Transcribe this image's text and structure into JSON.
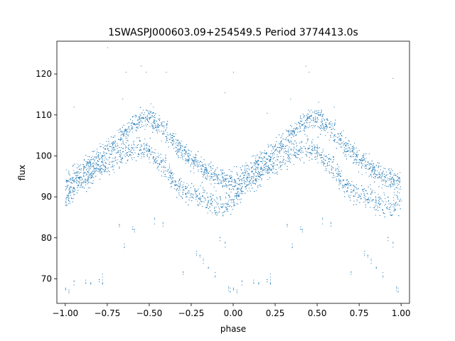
{
  "chart_data": {
    "type": "scatter",
    "title": "1SWASPJ000603.09+254549.5 Period 3774413.0s",
    "xlabel": "phase",
    "ylabel": "flux",
    "xlim": [
      -1.05,
      1.05
    ],
    "ylim": [
      64,
      128
    ],
    "xticks": [
      -1.0,
      -0.75,
      -0.5,
      -0.25,
      0.0,
      0.25,
      0.5,
      0.75,
      1.0
    ],
    "xtick_labels": [
      "−1.00",
      "−0.75",
      "−0.50",
      "−0.25",
      "0.00",
      "0.25",
      "0.50",
      "0.75",
      "1.00"
    ],
    "yticks": [
      70,
      80,
      90,
      100,
      110,
      120
    ],
    "ytick_labels": [
      "70",
      "80",
      "90",
      "100",
      "110",
      "120"
    ],
    "grid": false,
    "marker_color": "#1f77b4",
    "series": [
      {
        "x": [
          0.0,
          0.05,
          0.1,
          0.15,
          0.2,
          0.25,
          0.3,
          0.35,
          0.4,
          0.45,
          0.5,
          0.55,
          0.6,
          0.65,
          0.7,
          0.75,
          0.8,
          0.85,
          0.9,
          0.95,
          1.0
        ],
        "upper_branch": [
          93.5,
          95.0,
          96.5,
          98.0,
          100.0,
          101.5,
          103.5,
          105.5,
          107.5,
          109.0,
          109.5,
          108.0,
          106.0,
          103.5,
          101.0,
          99.0,
          97.5,
          96.0,
          95.0,
          94.5,
          94.0
        ],
        "lower_branch": [
          89.0,
          92.0,
          94.0,
          95.0,
          96.5,
          97.5,
          99.0,
          100.5,
          101.5,
          102.0,
          101.0,
          99.0,
          96.5,
          94.0,
          92.0,
          91.0,
          90.0,
          89.0,
          88.0,
          88.0,
          89.0
        ]
      }
    ],
    "dip_points": [
      {
        "x": 0.0,
        "y": 67.5
      },
      {
        "x": 0.02,
        "y": 67.0
      },
      {
        "x": 0.05,
        "y": 69.0
      },
      {
        "x": 0.12,
        "y": 69.5
      },
      {
        "x": 0.15,
        "y": 69.0
      },
      {
        "x": 0.2,
        "y": 69.5
      },
      {
        "x": 0.22,
        "y": 69.0
      },
      {
        "x": 0.22,
        "y": 70.0
      },
      {
        "x": 0.35,
        "y": 78.0
      },
      {
        "x": 0.4,
        "y": 82.0
      },
      {
        "x": 0.41,
        "y": 81.5
      },
      {
        "x": 0.53,
        "y": 84.0
      },
      {
        "x": 0.78,
        "y": 76.5
      },
      {
        "x": 0.8,
        "y": 75.5
      },
      {
        "x": 0.82,
        "y": 74.5
      },
      {
        "x": 0.85,
        "y": 73.0
      },
      {
        "x": 0.89,
        "y": 71.0
      },
      {
        "x": 0.97,
        "y": 67.5
      },
      {
        "x": 0.98,
        "y": 67.0
      },
      {
        "x": 0.92,
        "y": 80.0
      },
      {
        "x": 0.95,
        "y": 78.0
      },
      {
        "x": 0.32,
        "y": 83.0
      },
      {
        "x": 0.7,
        "y": 71.5
      },
      {
        "x": 0.58,
        "y": 83.5
      }
    ],
    "outlier_points": [
      {
        "x": -0.75,
        "y": 126.5
      },
      {
        "x": -0.55,
        "y": 122.0
      },
      {
        "x": -0.52,
        "y": 120.5
      },
      {
        "x": -0.4,
        "y": 120.5
      },
      {
        "x": -0.64,
        "y": 120.5
      },
      {
        "x": -0.66,
        "y": 114.0
      },
      {
        "x": 0.0,
        "y": 120.5
      },
      {
        "x": 0.43,
        "y": 122.0
      },
      {
        "x": 0.45,
        "y": 120.5
      },
      {
        "x": 0.95,
        "y": 119.0
      },
      {
        "x": -0.95,
        "y": 112.0
      },
      {
        "x": 0.6,
        "y": 112.0
      },
      {
        "x": 0.34,
        "y": 114.0
      },
      {
        "x": -0.05,
        "y": 115.5
      },
      {
        "x": 0.2,
        "y": 110.5
      }
    ]
  }
}
